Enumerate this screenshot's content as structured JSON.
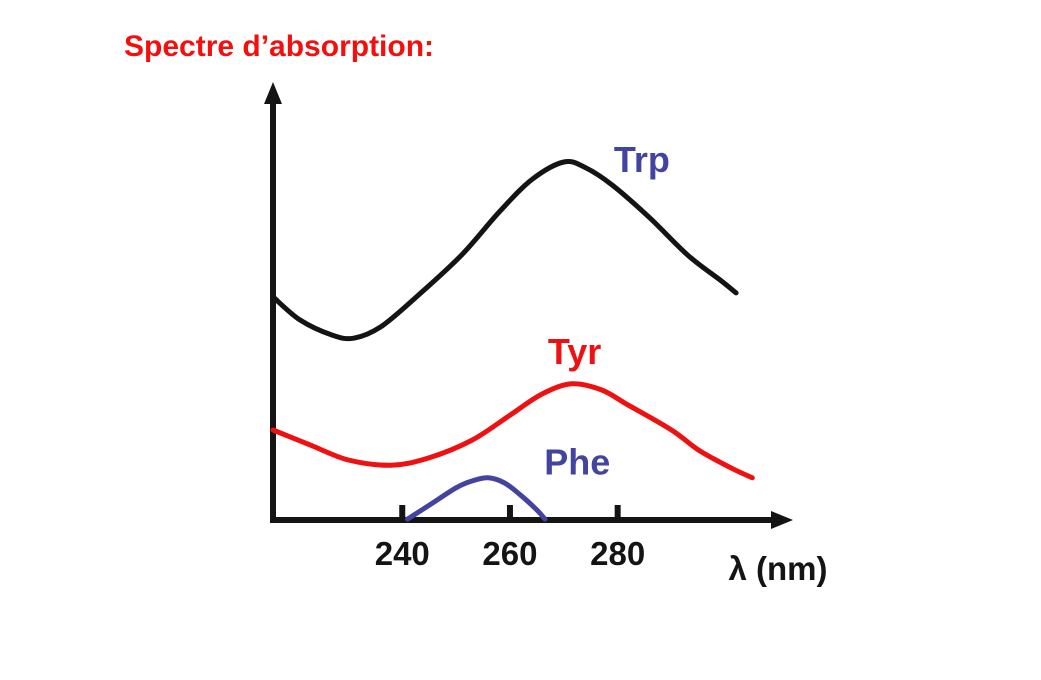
{
  "page": {
    "background": "#ffffff"
  },
  "chart_data": {
    "type": "line",
    "title": "Spectre d’absorption:",
    "title_color": "#f40f0f",
    "xlabel": "λ (nm)",
    "ylabel": "",
    "x_ticks": [
      240,
      260,
      280
    ],
    "xlim": [
      216,
      312
    ],
    "ylim": [
      0,
      1
    ],
    "grid": false,
    "legend": "inline-labels",
    "axis_color": "#141414",
    "series": [
      {
        "name": "Trp",
        "color": "#141414",
        "label_color": "#4343a0",
        "label_pos": {
          "x": 284.5,
          "y": 0.83
        },
        "points": [
          [
            216,
            0.513
          ],
          [
            221,
            0.46
          ],
          [
            227,
            0.425
          ],
          [
            231,
            0.418
          ],
          [
            236,
            0.444
          ],
          [
            243,
            0.517
          ],
          [
            251,
            0.609
          ],
          [
            258,
            0.708
          ],
          [
            264,
            0.782
          ],
          [
            270,
            0.823
          ],
          [
            274,
            0.81
          ],
          [
            279,
            0.77
          ],
          [
            286,
            0.694
          ],
          [
            293,
            0.609
          ],
          [
            299,
            0.552
          ],
          [
            302,
            0.522
          ]
        ]
      },
      {
        "name": "Tyr",
        "color": "#ee1111",
        "label_color": "#ee1111",
        "label_pos": {
          "x": 272.0,
          "y": 0.388
        },
        "points": [
          [
            216,
            0.207
          ],
          [
            223,
            0.172
          ],
          [
            230,
            0.138
          ],
          [
            238,
            0.126
          ],
          [
            245,
            0.143
          ],
          [
            253,
            0.184
          ],
          [
            260,
            0.241
          ],
          [
            266,
            0.29
          ],
          [
            271.5,
            0.313
          ],
          [
            277,
            0.299
          ],
          [
            282,
            0.264
          ],
          [
            290,
            0.207
          ],
          [
            295,
            0.161
          ],
          [
            301,
            0.12
          ],
          [
            305,
            0.097
          ]
        ]
      },
      {
        "name": "Phe",
        "color": "#4343a0",
        "label_color": "#4343a0",
        "label_pos": {
          "x": 272.5,
          "y": 0.135
        },
        "points": [
          [
            241,
            0.002
          ],
          [
            245,
            0.034
          ],
          [
            250,
            0.074
          ],
          [
            253,
            0.09
          ],
          [
            256,
            0.097
          ],
          [
            259,
            0.085
          ],
          [
            262,
            0.057
          ],
          [
            265,
            0.023
          ],
          [
            266.5,
            0.002
          ]
        ]
      }
    ]
  }
}
